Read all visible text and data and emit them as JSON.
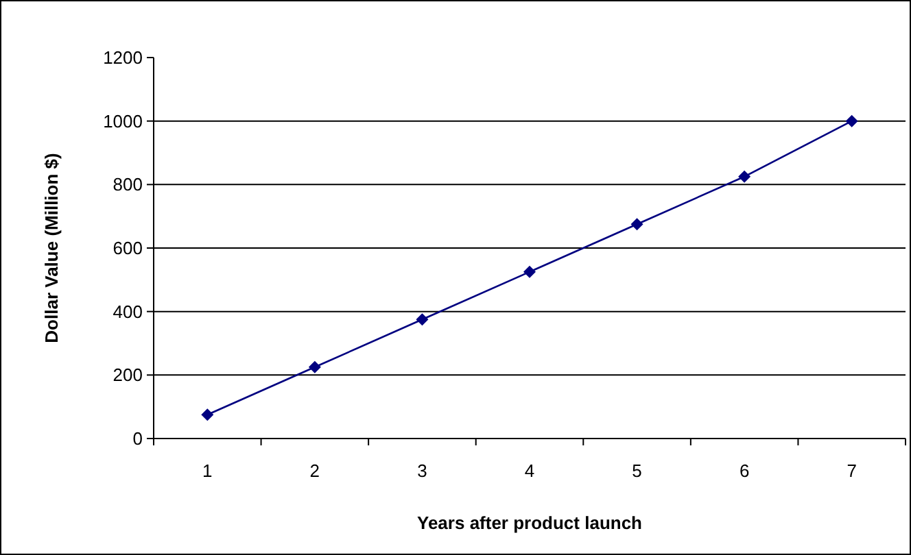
{
  "chart_data": {
    "type": "line",
    "xlabel": "Years after product launch",
    "ylabel": "Dollar Value (Million $)",
    "categories": [
      "1",
      "2",
      "3",
      "4",
      "5",
      "6",
      "7"
    ],
    "series": [
      {
        "color": "#000080",
        "values": [
          75,
          225,
          375,
          525,
          675,
          825,
          1000
        ]
      }
    ],
    "ylim": [
      0,
      1200
    ],
    "yticks": [
      0,
      200,
      400,
      600,
      800,
      1000,
      1200
    ],
    "grid": "y",
    "marker": "diamond",
    "line_style": "solid"
  }
}
